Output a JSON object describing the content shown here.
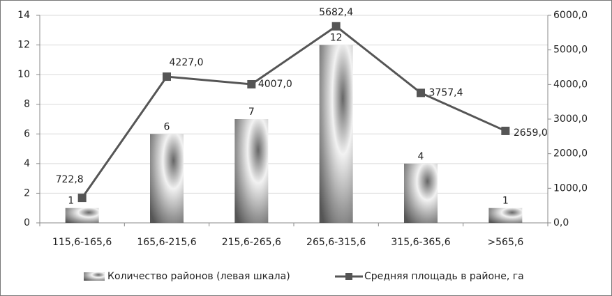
{
  "chart_data": {
    "type": "bar",
    "categories": [
      "115,6-165,6",
      "165,6-215,6",
      "215,6-265,6",
      "265,6-315,6",
      "315,6-365,6",
      ">565,6"
    ],
    "series": [
      {
        "name": "Количество районов (левая шкала)",
        "type": "bar",
        "color": "#8a8a8a",
        "values": [
          1,
          6,
          7,
          12,
          4,
          1
        ]
      },
      {
        "name": "Средняя площадь в районе, га",
        "type": "line",
        "axis": "y2",
        "color": "#555555",
        "values": [
          722.8,
          4227.0,
          4007.0,
          5682.4,
          3757.4,
          2659.0
        ],
        "value_labels": [
          "722,8",
          "4227,0",
          "4007,0",
          "5682,4",
          "3757,4",
          "2659,0"
        ]
      }
    ],
    "ylim": [
      0,
      14
    ],
    "yticks": [
      0,
      2,
      4,
      6,
      8,
      10,
      12,
      14
    ],
    "y2lim": [
      0,
      6000
    ],
    "y2ticks": [
      {
        "value": 0,
        "label": "0,0"
      },
      {
        "value": 1000,
        "label": "1000,0"
      },
      {
        "value": 2000,
        "label": "2000,0"
      },
      {
        "value": 3000,
        "label": "3000,0"
      },
      {
        "value": 4000,
        "label": "4000,0"
      },
      {
        "value": 5000,
        "label": "5000,0"
      },
      {
        "value": 6000,
        "label": "6000,0"
      }
    ],
    "grid": true
  }
}
